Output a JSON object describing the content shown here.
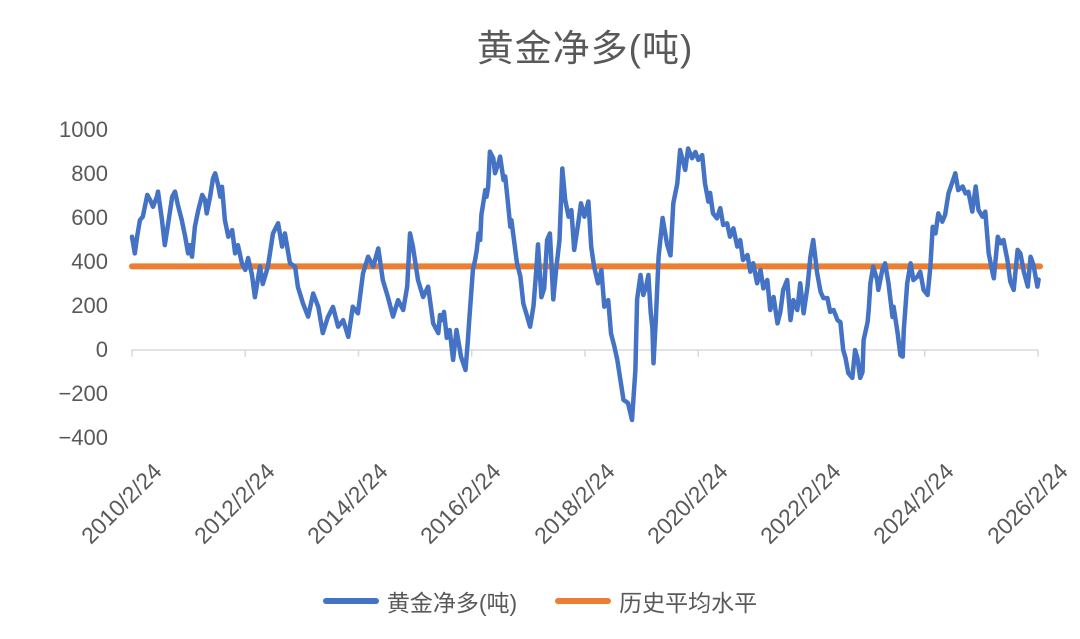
{
  "title": "黄金净多(吨)",
  "colors": {
    "series": "#4472C4",
    "average": "#ED7D31",
    "axis_line": "#D9D9D9",
    "text": "#595959",
    "background": "#FFFFFF"
  },
  "legend": {
    "items": [
      {
        "label": "黄金净多(吨)",
        "color": "#4472C4"
      },
      {
        "label": "历史平均水平",
        "color": "#ED7D31"
      }
    ]
  },
  "chart_data": {
    "type": "line",
    "title": "黄金净多(吨)",
    "xlabel": "",
    "ylabel": "",
    "grid": "off",
    "legend_position": "bottom",
    "x_axis": {
      "tick_labels": [
        "2010/2/24",
        "2012/2/24",
        "2014/2/24",
        "2016/2/24",
        "2018/2/24",
        "2020/2/24",
        "2022/2/24",
        "2024/2/24",
        "2026/2/24"
      ],
      "tick_values": [
        2010.15,
        2012.15,
        2014.15,
        2016.15,
        2018.15,
        2020.15,
        2022.15,
        2024.15,
        2026.15
      ],
      "range": [
        2010.15,
        2026.15
      ],
      "label_rotation_deg": 45
    },
    "y_axis": {
      "tick_labels": [
        "1000",
        "800",
        "600",
        "400",
        "200",
        "0",
        "−200",
        "−400"
      ],
      "tick_values": [
        1000,
        800,
        600,
        400,
        200,
        0,
        -200,
        -400
      ],
      "range": [
        -400,
        1000
      ],
      "axis_cross_value": 0
    },
    "series": [
      {
        "name": "黄金净多(吨)",
        "type": "line",
        "color": "#4472C4",
        "points": [
          [
            2010.15,
            515
          ],
          [
            2010.2,
            439
          ],
          [
            2010.24,
            515
          ],
          [
            2010.29,
            590
          ],
          [
            2010.34,
            606
          ],
          [
            2010.42,
            705
          ],
          [
            2010.47,
            682
          ],
          [
            2010.52,
            651
          ],
          [
            2010.59,
            697
          ],
          [
            2010.61,
            720
          ],
          [
            2010.68,
            590
          ],
          [
            2010.73,
            477
          ],
          [
            2010.79,
            576
          ],
          [
            2010.86,
            697
          ],
          [
            2010.91,
            720
          ],
          [
            2010.96,
            659
          ],
          [
            2011.03,
            590
          ],
          [
            2011.09,
            515
          ],
          [
            2011.14,
            439
          ],
          [
            2011.17,
            477
          ],
          [
            2011.21,
            424
          ],
          [
            2011.26,
            561
          ],
          [
            2011.32,
            636
          ],
          [
            2011.39,
            705
          ],
          [
            2011.44,
            682
          ],
          [
            2011.47,
            621
          ],
          [
            2011.53,
            697
          ],
          [
            2011.58,
            780
          ],
          [
            2011.62,
            803
          ],
          [
            2011.67,
            750
          ],
          [
            2011.71,
            697
          ],
          [
            2011.74,
            742
          ],
          [
            2011.79,
            590
          ],
          [
            2011.85,
            515
          ],
          [
            2011.92,
            545
          ],
          [
            2011.97,
            439
          ],
          [
            2012.02,
            477
          ],
          [
            2012.09,
            394
          ],
          [
            2012.15,
            364
          ],
          [
            2012.2,
            418
          ],
          [
            2012.27,
            341
          ],
          [
            2012.32,
            240
          ],
          [
            2012.41,
            380
          ],
          [
            2012.46,
            300
          ],
          [
            2012.55,
            379
          ],
          [
            2012.64,
            530
          ],
          [
            2012.73,
            576
          ],
          [
            2012.8,
            470
          ],
          [
            2012.85,
            530
          ],
          [
            2012.94,
            394
          ],
          [
            2013.03,
            379
          ],
          [
            2013.08,
            287
          ],
          [
            2013.17,
            212
          ],
          [
            2013.26,
            152
          ],
          [
            2013.35,
            257
          ],
          [
            2013.44,
            196
          ],
          [
            2013.52,
            77
          ],
          [
            2013.61,
            150
          ],
          [
            2013.7,
            196
          ],
          [
            2013.79,
            106
          ],
          [
            2013.88,
            136
          ],
          [
            2013.97,
            60
          ],
          [
            2014.05,
            197
          ],
          [
            2014.14,
            167
          ],
          [
            2014.23,
            348
          ],
          [
            2014.32,
            424
          ],
          [
            2014.41,
            379
          ],
          [
            2014.5,
            462
          ],
          [
            2014.58,
            318
          ],
          [
            2014.67,
            241
          ],
          [
            2014.76,
            152
          ],
          [
            2014.85,
            227
          ],
          [
            2014.94,
            182
          ],
          [
            2015.01,
            288
          ],
          [
            2015.06,
            530
          ],
          [
            2015.11,
            470
          ],
          [
            2015.2,
            318
          ],
          [
            2015.29,
            241
          ],
          [
            2015.38,
            288
          ],
          [
            2015.47,
            121
          ],
          [
            2015.56,
            77
          ],
          [
            2015.59,
            159
          ],
          [
            2015.63,
            136
          ],
          [
            2015.66,
            173
          ],
          [
            2015.71,
            55
          ],
          [
            2015.76,
            91
          ],
          [
            2015.82,
            -45
          ],
          [
            2015.88,
            91
          ],
          [
            2015.96,
            -30
          ],
          [
            2016.0,
            -61
          ],
          [
            2016.04,
            -91
          ],
          [
            2016.08,
            38
          ],
          [
            2016.1,
            114
          ],
          [
            2016.17,
            364
          ],
          [
            2016.21,
            409
          ],
          [
            2016.24,
            455
          ],
          [
            2016.27,
            530
          ],
          [
            2016.3,
            500
          ],
          [
            2016.32,
            614
          ],
          [
            2016.39,
            727
          ],
          [
            2016.41,
            697
          ],
          [
            2016.44,
            743
          ],
          [
            2016.47,
            902
          ],
          [
            2016.53,
            871
          ],
          [
            2016.56,
            803
          ],
          [
            2016.62,
            848
          ],
          [
            2016.65,
            879
          ],
          [
            2016.71,
            773
          ],
          [
            2016.74,
            789
          ],
          [
            2016.79,
            667
          ],
          [
            2016.83,
            560
          ],
          [
            2016.85,
            590
          ],
          [
            2016.95,
            394
          ],
          [
            2017.01,
            333
          ],
          [
            2017.06,
            212
          ],
          [
            2017.13,
            152
          ],
          [
            2017.18,
            106
          ],
          [
            2017.24,
            200
          ],
          [
            2017.29,
            364
          ],
          [
            2017.32,
            480
          ],
          [
            2017.38,
            240
          ],
          [
            2017.43,
            280
          ],
          [
            2017.48,
            500
          ],
          [
            2017.53,
            530
          ],
          [
            2017.59,
            230
          ],
          [
            2017.64,
            364
          ],
          [
            2017.7,
            500
          ],
          [
            2017.75,
            825
          ],
          [
            2017.8,
            682
          ],
          [
            2017.86,
            606
          ],
          [
            2017.91,
            636
          ],
          [
            2017.96,
            455
          ],
          [
            2018.03,
            576
          ],
          [
            2018.08,
            667
          ],
          [
            2018.14,
            606
          ],
          [
            2018.21,
            675
          ],
          [
            2018.26,
            470
          ],
          [
            2018.31,
            379
          ],
          [
            2018.38,
            303
          ],
          [
            2018.44,
            364
          ],
          [
            2018.49,
            197
          ],
          [
            2018.56,
            227
          ],
          [
            2018.61,
            76
          ],
          [
            2018.67,
            15
          ],
          [
            2018.72,
            -45
          ],
          [
            2018.83,
            -227
          ],
          [
            2018.91,
            -241
          ],
          [
            2018.98,
            -318
          ],
          [
            2019.04,
            -90
          ],
          [
            2019.07,
            230
          ],
          [
            2019.13,
            341
          ],
          [
            2019.18,
            250
          ],
          [
            2019.23,
            290
          ],
          [
            2019.27,
            341
          ],
          [
            2019.31,
            170
          ],
          [
            2019.34,
            100
          ],
          [
            2019.36,
            -60
          ],
          [
            2019.4,
            136
          ],
          [
            2019.45,
            424
          ],
          [
            2019.52,
            600
          ],
          [
            2019.6,
            480
          ],
          [
            2019.66,
            430
          ],
          [
            2019.71,
            667
          ],
          [
            2019.78,
            757
          ],
          [
            2019.83,
            909
          ],
          [
            2019.92,
            818
          ],
          [
            2019.97,
            916
          ],
          [
            2020.04,
            872
          ],
          [
            2020.1,
            900
          ],
          [
            2020.15,
            864
          ],
          [
            2020.22,
            886
          ],
          [
            2020.27,
            757
          ],
          [
            2020.33,
            674
          ],
          [
            2020.36,
            714
          ],
          [
            2020.41,
            621
          ],
          [
            2020.48,
            598
          ],
          [
            2020.54,
            645
          ],
          [
            2020.59,
            568
          ],
          [
            2020.66,
            576
          ],
          [
            2020.71,
            515
          ],
          [
            2020.77,
            553
          ],
          [
            2020.84,
            470
          ],
          [
            2020.89,
            500
          ],
          [
            2020.94,
            409
          ],
          [
            2021.02,
            432
          ],
          [
            2021.07,
            356
          ],
          [
            2021.12,
            394
          ],
          [
            2021.19,
            303
          ],
          [
            2021.25,
            364
          ],
          [
            2021.3,
            280
          ],
          [
            2021.37,
            318
          ],
          [
            2021.42,
            182
          ],
          [
            2021.48,
            241
          ],
          [
            2021.55,
            121
          ],
          [
            2021.6,
            174
          ],
          [
            2021.65,
            273
          ],
          [
            2021.72,
            318
          ],
          [
            2021.78,
            136
          ],
          [
            2021.83,
            227
          ],
          [
            2021.9,
            182
          ],
          [
            2021.95,
            303
          ],
          [
            2022.01,
            167
          ],
          [
            2022.08,
            288
          ],
          [
            2022.13,
            424
          ],
          [
            2022.18,
            500
          ],
          [
            2022.25,
            348
          ],
          [
            2022.31,
            264
          ],
          [
            2022.36,
            236
          ],
          [
            2022.43,
            236
          ],
          [
            2022.48,
            173
          ],
          [
            2022.54,
            182
          ],
          [
            2022.61,
            136
          ],
          [
            2022.66,
            127
          ],
          [
            2022.71,
            0
          ],
          [
            2022.75,
            -36
          ],
          [
            2022.8,
            -105
          ],
          [
            2022.87,
            -127
          ],
          [
            2022.92,
            0
          ],
          [
            2022.96,
            -36
          ],
          [
            2023.01,
            -127
          ],
          [
            2023.05,
            -100
          ],
          [
            2023.07,
            45
          ],
          [
            2023.14,
            127
          ],
          [
            2023.16,
            182
          ],
          [
            2023.19,
            303
          ],
          [
            2023.24,
            379
          ],
          [
            2023.31,
            318
          ],
          [
            2023.33,
            273
          ],
          [
            2023.4,
            364
          ],
          [
            2023.45,
            394
          ],
          [
            2023.51,
            303
          ],
          [
            2023.58,
            150
          ],
          [
            2023.6,
            197
          ],
          [
            2023.67,
            77
          ],
          [
            2023.72,
            -23
          ],
          [
            2023.76,
            -30
          ],
          [
            2023.78,
            91
          ],
          [
            2023.84,
            303
          ],
          [
            2023.9,
            394
          ],
          [
            2023.95,
            318
          ],
          [
            2024.02,
            333
          ],
          [
            2024.07,
            356
          ],
          [
            2024.13,
            273
          ],
          [
            2024.2,
            250
          ],
          [
            2024.25,
            380
          ],
          [
            2024.29,
            560
          ],
          [
            2024.34,
            530
          ],
          [
            2024.39,
            621
          ],
          [
            2024.46,
            583
          ],
          [
            2024.51,
            614
          ],
          [
            2024.57,
            712
          ],
          [
            2024.64,
            765
          ],
          [
            2024.69,
            803
          ],
          [
            2024.74,
            727
          ],
          [
            2024.82,
            743
          ],
          [
            2024.87,
            712
          ],
          [
            2024.92,
            719
          ],
          [
            2024.99,
            629
          ],
          [
            2025.05,
            743
          ],
          [
            2025.1,
            636
          ],
          [
            2025.17,
            606
          ],
          [
            2025.22,
            629
          ],
          [
            2025.28,
            439
          ],
          [
            2025.35,
            348
          ],
          [
            2025.37,
            326
          ],
          [
            2025.44,
            515
          ],
          [
            2025.49,
            485
          ],
          [
            2025.54,
            500
          ],
          [
            2025.61,
            409
          ],
          [
            2025.66,
            311
          ],
          [
            2025.72,
            273
          ],
          [
            2025.79,
            455
          ],
          [
            2025.84,
            439
          ],
          [
            2025.9,
            356
          ],
          [
            2025.97,
            288
          ],
          [
            2026.02,
            424
          ],
          [
            2026.07,
            386
          ],
          [
            2026.14,
            288
          ],
          [
            2026.16,
            320
          ]
        ]
      },
      {
        "name": "历史平均水平",
        "type": "hline",
        "color": "#ED7D31",
        "value": 380
      }
    ]
  }
}
